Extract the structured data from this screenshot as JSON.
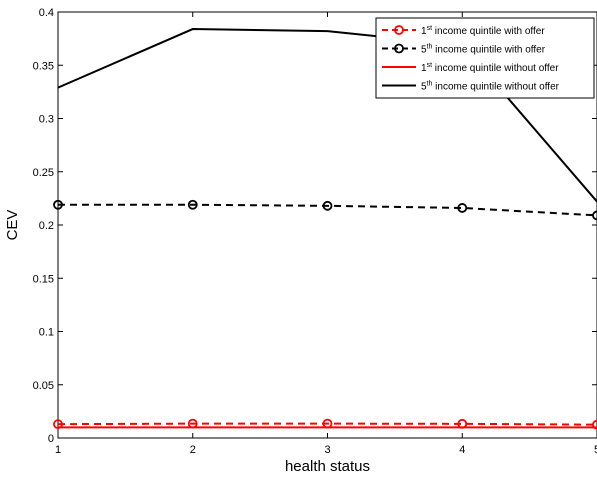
{
  "chart_data": {
    "type": "line",
    "title": "",
    "xlabel": "health status",
    "ylabel": "CEV",
    "x": [
      1,
      2,
      3,
      4,
      5
    ],
    "xlim": [
      1,
      5
    ],
    "ylim": [
      0,
      0.4
    ],
    "x_ticks": [
      "1",
      "2",
      "3",
      "4",
      "5"
    ],
    "y_ticks": [
      "0",
      "0.05",
      "0.1",
      "0.15",
      "0.2",
      "0.25",
      "0.3",
      "0.35",
      "0.4"
    ],
    "grid": false,
    "legend_position": "top-right",
    "series": [
      {
        "name_prefix": "1",
        "name_sup": "st",
        "name_rest": " income quintile with offer",
        "color": "#ff0000",
        "line_style": "dashed",
        "marker": "circle",
        "values": [
          0.013,
          0.0135,
          0.0135,
          0.0133,
          0.0125
        ]
      },
      {
        "name_prefix": "5",
        "name_sup": "th",
        "name_rest": " income quintile with offer",
        "color": "#000000",
        "line_style": "dashed",
        "marker": "circle",
        "values": [
          0.219,
          0.219,
          0.218,
          0.216,
          0.209
        ]
      },
      {
        "name_prefix": "1",
        "name_sup": "st",
        "name_rest": " income quintile without offer",
        "color": "#ff0000",
        "line_style": "solid",
        "marker": "none",
        "values": [
          0.01,
          0.01,
          0.01,
          0.01,
          0.01
        ]
      },
      {
        "name_prefix": "5",
        "name_sup": "th",
        "name_rest": " income quintile without offer",
        "color": "#000000",
        "line_style": "solid",
        "marker": "none",
        "values": [
          0.329,
          0.384,
          0.382,
          0.369,
          0.222
        ]
      }
    ]
  }
}
